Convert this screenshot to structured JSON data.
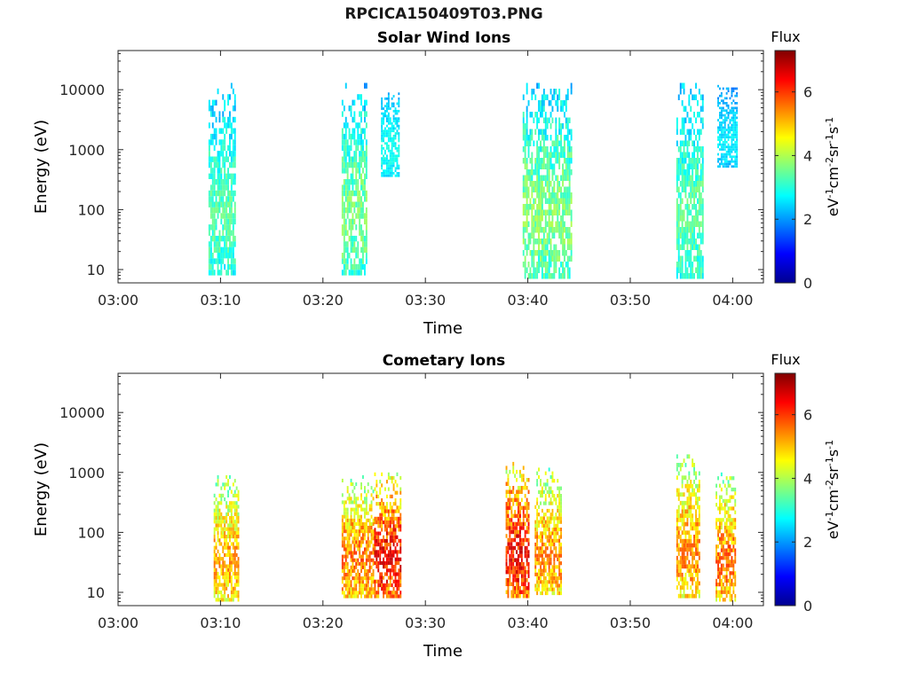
{
  "page": {
    "title": "RPCICA150409T03.PNG"
  },
  "chart_data": [
    {
      "type": "heatmap",
      "title": "Solar Wind Ions",
      "xlabel": "Time",
      "ylabel": "Energy (eV)",
      "y_scale": "log",
      "ylim": [
        6,
        45000
      ],
      "x_range": [
        "03:00",
        "04:03"
      ],
      "x_ticks": [
        "03:00",
        "03:10",
        "03:20",
        "03:30",
        "03:40",
        "03:50",
        "04:00"
      ],
      "y_ticks": [
        "10",
        "100",
        "1000",
        "10000"
      ],
      "colorbar": {
        "title": "Flux",
        "label": "eV-1cm-2sr-1s-1",
        "range": [
          0,
          7.3
        ],
        "ticks": [
          "0",
          "2",
          "4",
          "6"
        ],
        "colormap": "jet"
      },
      "bursts": [
        {
          "start": "03:08:50",
          "end": "03:11:30",
          "energy_min": 8,
          "energy_max": 13000,
          "flux_min": 1.5,
          "flux_max": 3.6
        },
        {
          "start": "03:21:50",
          "end": "03:24:20",
          "energy_min": 8,
          "energy_max": 13000,
          "flux_min": 1.5,
          "flux_max": 3.9
        },
        {
          "start": "03:25:40",
          "end": "03:27:30",
          "energy_min": 350,
          "energy_max": 9000,
          "flux_min": 1.8,
          "flux_max": 3.0
        },
        {
          "start": "03:39:30",
          "end": "03:44:20",
          "energy_min": 7,
          "energy_max": 13000,
          "flux_min": 1.5,
          "flux_max": 4.0
        },
        {
          "start": "03:54:30",
          "end": "03:57:10",
          "energy_min": 7,
          "energy_max": 13000,
          "flux_min": 1.5,
          "flux_max": 3.7
        },
        {
          "start": "03:58:30",
          "end": "04:00:30",
          "energy_min": 500,
          "energy_max": 12000,
          "flux_min": 1.5,
          "flux_max": 2.8
        }
      ]
    },
    {
      "type": "heatmap",
      "title": "Cometary Ions",
      "xlabel": "Time",
      "ylabel": "Energy (eV)",
      "y_scale": "log",
      "ylim": [
        6,
        45000
      ],
      "x_range": [
        "03:00",
        "04:03"
      ],
      "x_ticks": [
        "03:00",
        "03:10",
        "03:20",
        "03:30",
        "03:40",
        "03:50",
        "04:00"
      ],
      "y_ticks": [
        "10",
        "100",
        "1000",
        "10000"
      ],
      "colorbar": {
        "title": "Flux",
        "label": "eV-1cm-2sr-1s-1",
        "range": [
          0,
          7.3
        ],
        "ticks": [
          "0",
          "2",
          "4",
          "6"
        ],
        "colormap": "jet"
      },
      "bursts": [
        {
          "start": "03:09:20",
          "end": "03:11:50",
          "energy_min": 7,
          "energy_max": 900,
          "flux_min": 2.5,
          "flux_max": 5.6
        },
        {
          "start": "03:21:50",
          "end": "03:25:00",
          "energy_min": 8,
          "energy_max": 900,
          "flux_min": 2.5,
          "flux_max": 6.0
        },
        {
          "start": "03:25:00",
          "end": "03:27:40",
          "energy_min": 8,
          "energy_max": 1000,
          "flux_min": 3.0,
          "flux_max": 6.8
        },
        {
          "start": "03:37:50",
          "end": "03:40:10",
          "energy_min": 8,
          "energy_max": 1500,
          "flux_min": 3.0,
          "flux_max": 6.8
        },
        {
          "start": "03:40:40",
          "end": "03:43:20",
          "energy_min": 9,
          "energy_max": 1200,
          "flux_min": 2.5,
          "flux_max": 5.8
        },
        {
          "start": "03:54:30",
          "end": "03:56:50",
          "energy_min": 8,
          "energy_max": 2000,
          "flux_min": 2.5,
          "flux_max": 5.8
        },
        {
          "start": "03:58:20",
          "end": "04:00:20",
          "energy_min": 7,
          "energy_max": 1000,
          "flux_min": 2.5,
          "flux_max": 6.0
        }
      ]
    }
  ]
}
